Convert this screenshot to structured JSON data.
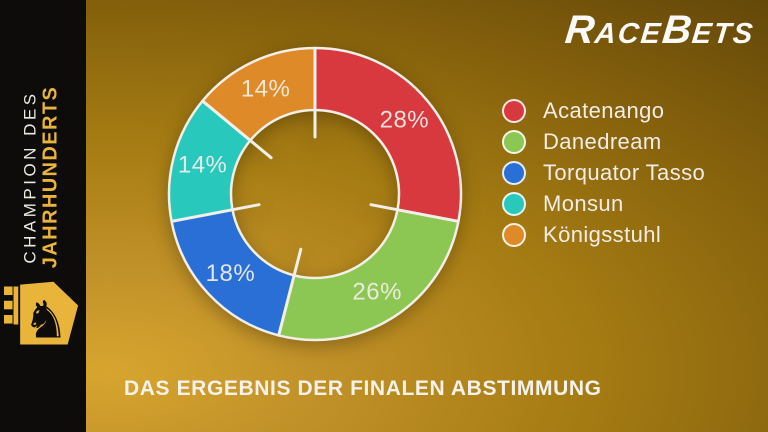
{
  "brand": {
    "name": "RaceBets",
    "parts": [
      "R",
      "ACE",
      "B",
      "ETS"
    ],
    "color": "#fbfaf8"
  },
  "sidebar": {
    "title_line1": "CHAMPION DES",
    "title_line2": "JAHRHUNDERTS",
    "title_line1_color": "#ece9e3",
    "title_line2_color": "#e9b43a",
    "logo_icon": "horse-knight-icon",
    "logo_glyph": "♞",
    "background": "#0d0c0a"
  },
  "caption": {
    "text": "DAS ERGEBNIS DER FINALEN ABSTIMMUNG",
    "color": "#f5f2ec"
  },
  "background": {
    "gradient_inner": "#d7a52e",
    "gradient_outer": "#5c4208"
  },
  "chart_data": {
    "type": "pie",
    "subtype": "donut",
    "title": "DAS ERGEBNIS DER FINALEN ABSTIMMUNG",
    "categories": [
      "Acatenango",
      "Danedream",
      "Torquator Tasso",
      "Monsun",
      "Königsstuhl"
    ],
    "values": [
      28,
      26,
      18,
      14,
      14
    ],
    "unit": "%",
    "value_labels": [
      "28%",
      "26%",
      "18%",
      "14%",
      "14%"
    ],
    "colors": [
      "#d8393f",
      "#8cc653",
      "#2a6fd6",
      "#29c8bd",
      "#de8a28"
    ],
    "start_angle_deg": 0,
    "direction": "clockwise",
    "inner_radius_ratio": 0.58,
    "segment_stroke_color": "#f2efe9",
    "legend_position": "right",
    "label_position": "inside-ring"
  }
}
